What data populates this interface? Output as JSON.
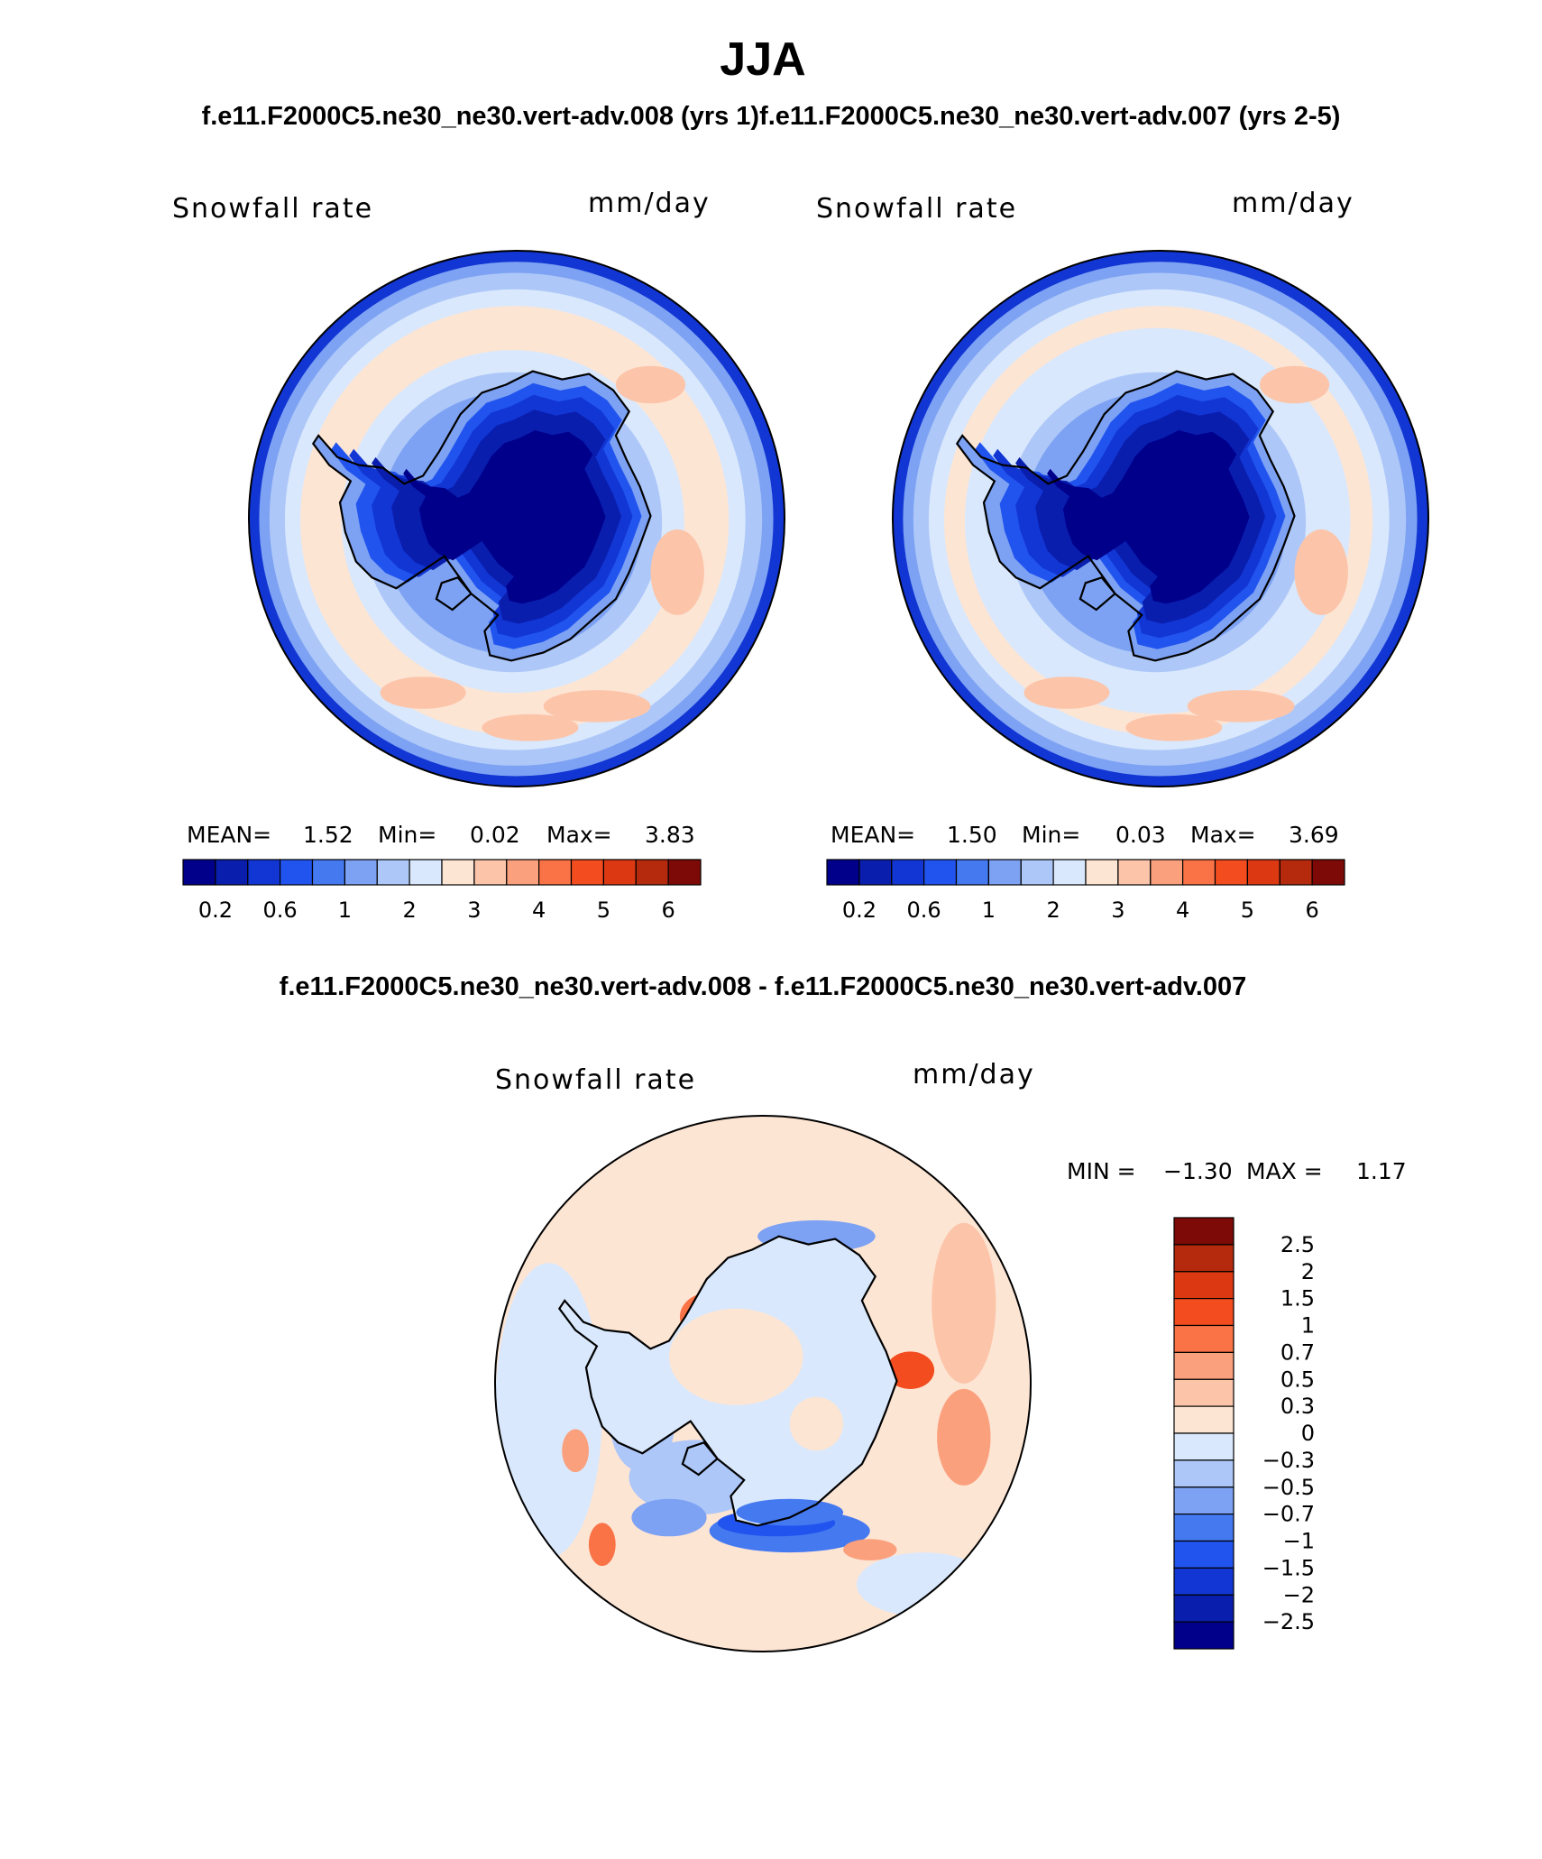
{
  "chart_data": {
    "type": "heatmap",
    "title": "JJA",
    "subtitle": "f.e11.F2000C5.ne30_ne30.vert-adv.008 (yrs 1)f.e11.F2000C5.ne30_ne30.vert-adv.007 (yrs 2-5)",
    "diff_title": "f.e11.F2000C5.ne30_ne30.vert-adv.008 - f.e11.F2000C5.ne30_ne30.vert-adv.007",
    "panels": [
      {
        "label": "Snowfall rate",
        "units": "mm/day",
        "stats": {
          "mean_label": "MEAN=",
          "mean": "1.52",
          "min_label": "Min=",
          "min": "0.02",
          "max_label": "Max=",
          "max": "3.83"
        },
        "colorbar_levels": [
          "0.2",
          "0.6",
          "1",
          "2",
          "3",
          "4",
          "5",
          "6"
        ],
        "field": {
          "interior": 0.02,
          "coast": 1.0,
          "ocean_near": 1.6,
          "ocean_far": 2.7,
          "rim": 0.5
        }
      },
      {
        "label": "Snowfall rate",
        "units": "mm/day",
        "stats": {
          "mean_label": "MEAN=",
          "mean": "1.50",
          "min_label": "Min=",
          "min": "0.03",
          "max_label": "Max=",
          "max": "3.69"
        },
        "colorbar_levels": [
          "0.2",
          "0.6",
          "1",
          "2",
          "3",
          "4",
          "5",
          "6"
        ],
        "field": {
          "interior": 0.03,
          "coast": 1.0,
          "ocean_near": 1.6,
          "ocean_far": 2.6,
          "rim": 0.5
        }
      },
      {
        "label": "Snowfall rate",
        "units": "mm/day",
        "stats": {
          "min_label": "MIN =",
          "min": "−1.30",
          "max_label": "MAX =",
          "max": "1.17"
        },
        "colorbar_levels": [
          "−2.5",
          "−2",
          "−1.5",
          "−1",
          "−0.7",
          "−0.5",
          "−0.3",
          "0",
          "0.3",
          "0.5",
          "0.7",
          "1",
          "1.5",
          "2",
          "2.5"
        ]
      }
    ],
    "colormap": [
      "#00008b",
      "#0a1eae",
      "#1236d4",
      "#2154ee",
      "#4579f0",
      "#7da2f3",
      "#adc7f8",
      "#d9e8fc",
      "#fde5d4",
      "#fcc5aa",
      "#fba07d",
      "#fa7346",
      "#f24c1f",
      "#dc3812",
      "#b52a0c",
      "#7d0a06"
    ]
  }
}
